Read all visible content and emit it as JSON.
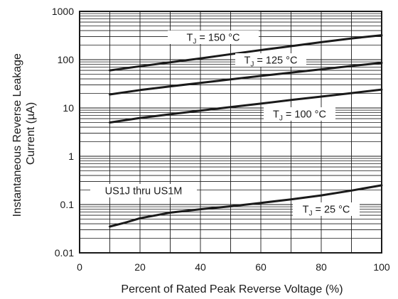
{
  "chart_data": {
    "type": "line",
    "xlabel": "Percent of Rated Peak Reverse Voltage (%)",
    "ylabel": [
      "Instantaneous Reverse Leakage",
      "Current (µA)"
    ],
    "xlim": [
      0,
      100
    ],
    "ylim": [
      0.01,
      1000
    ],
    "yscale": "log",
    "grid": true,
    "x_ticks": [
      "0",
      "20",
      "40",
      "60",
      "80",
      "100"
    ],
    "y_ticks": [
      "0.01",
      "0.1",
      "1",
      "10",
      "100",
      "1000"
    ],
    "series": [
      {
        "name": "T_J = 150 °C",
        "x": [
          10,
          20,
          30,
          40,
          50,
          60,
          70,
          80,
          90,
          100
        ],
        "y": [
          60,
          73,
          88,
          106,
          130,
          158,
          190,
          230,
          275,
          320
        ]
      },
      {
        "name": "T_J = 125 °C",
        "x": [
          10,
          20,
          30,
          40,
          50,
          60,
          70,
          80,
          90,
          100
        ],
        "y": [
          19,
          23.5,
          28,
          33,
          39,
          46,
          54,
          63,
          74,
          86
        ]
      },
      {
        "name": "T_J = 100 °C",
        "x": [
          10,
          20,
          30,
          40,
          50,
          60,
          70,
          80,
          90,
          100
        ],
        "y": [
          5,
          6.2,
          7.4,
          8.8,
          10.4,
          12.3,
          14.6,
          17.2,
          20.3,
          24
        ]
      },
      {
        "name": "T_J = 25 °C",
        "x": [
          10,
          15,
          20,
          30,
          40,
          50,
          60,
          70,
          80,
          90,
          100
        ],
        "y": [
          0.035,
          0.042,
          0.052,
          0.068,
          0.08,
          0.092,
          0.108,
          0.128,
          0.155,
          0.195,
          0.25
        ]
      }
    ],
    "annotations": [
      {
        "main": "T",
        "sub": "J",
        "rest": " = 150 °C",
        "series": 0
      },
      {
        "main": "T",
        "sub": "J",
        "rest": " = 125 °C",
        "series": 1
      },
      {
        "main": "T",
        "sub": "J",
        "rest": " = 100 °C",
        "series": 2
      },
      {
        "main": "T",
        "sub": "J",
        "rest": " = 25 °C",
        "series": 3
      },
      {
        "text": "US1J thru US1M"
      }
    ]
  }
}
